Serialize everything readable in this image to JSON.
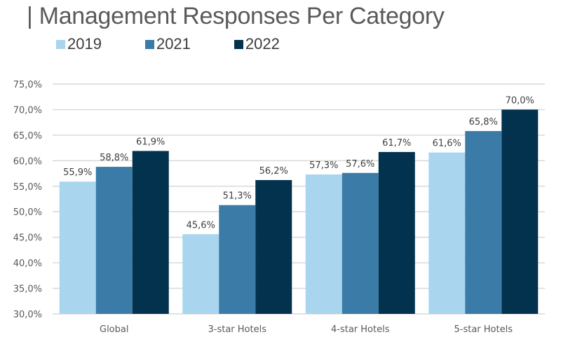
{
  "chart_data": {
    "type": "bar",
    "title": "| Management Responses Per Category",
    "xlabel": "",
    "ylabel": "",
    "categories": [
      "Global",
      "3-star Hotels",
      "4-star Hotels",
      "5-star Hotels"
    ],
    "series": [
      {
        "name": "2019",
        "color": "#A9D6EE",
        "values": [
          55.9,
          45.6,
          57.3,
          61.6
        ],
        "labels": [
          "55,9%",
          "45,6%",
          "57,3%",
          "61,6%"
        ]
      },
      {
        "name": "2021",
        "color": "#3A7BA7",
        "values": [
          58.8,
          51.3,
          57.6,
          65.8
        ],
        "labels": [
          "58,8%",
          "51,3%",
          "57,6%",
          "65,8%"
        ]
      },
      {
        "name": "2022",
        "color": "#02324E",
        "values": [
          61.9,
          56.2,
          61.7,
          70.0
        ],
        "labels": [
          "61,9%",
          "56,2%",
          "61,7%",
          "70,0%"
        ]
      }
    ],
    "ylim": [
      30,
      75
    ],
    "yticks": [
      30,
      35,
      40,
      45,
      50,
      55,
      60,
      65,
      70,
      75
    ],
    "ytick_labels": [
      "30,0%",
      "35,0%",
      "40,0%",
      "45,0%",
      "50,0%",
      "55,0%",
      "60,0%",
      "65,0%",
      "70,0%",
      "75,0%"
    ],
    "grid": true,
    "gridline_color": "#D9D9D9",
    "legend_position": "top-left"
  }
}
